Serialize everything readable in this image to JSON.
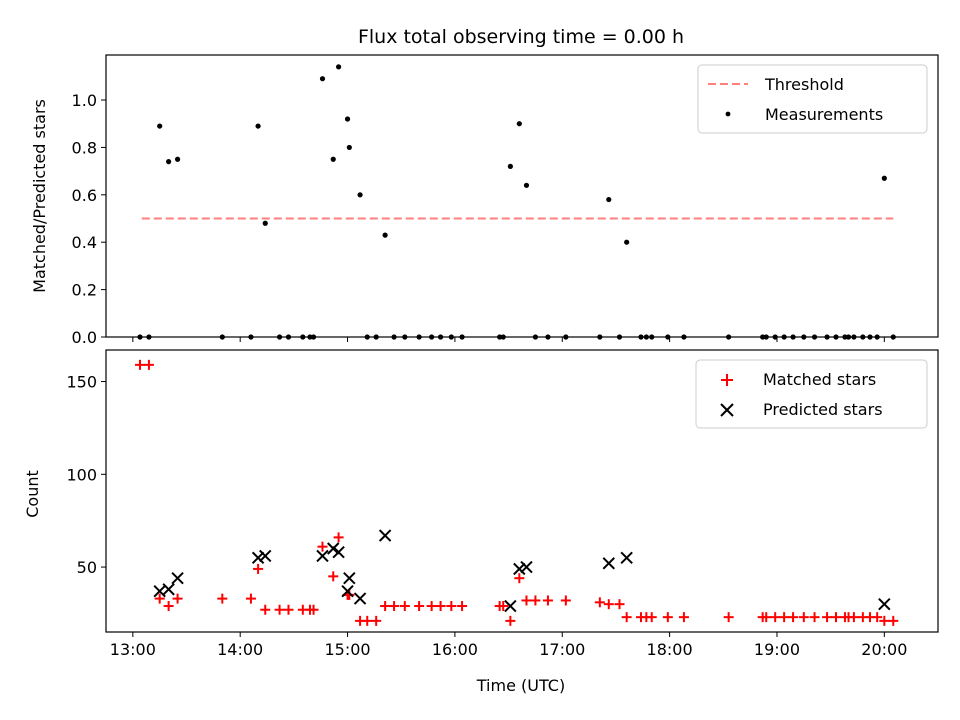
{
  "chart_data": [
    {
      "type": "scatter",
      "title": "Flux total observing time = 0.00 h",
      "xlabel": "",
      "ylabel": "Matched/Predicted stars",
      "xlim": [
        "12:45",
        "20:30"
      ],
      "ylim": [
        0,
        1.19
      ],
      "x_tick_labels": [],
      "x_ticks": [
        "13:00",
        "14:00",
        "15:00",
        "16:00",
        "17:00",
        "18:00",
        "19:00",
        "20:00"
      ],
      "y_ticks": [
        0.0,
        0.2,
        0.4,
        0.6,
        0.8,
        1.0
      ],
      "y_tick_labels": [
        "0.0",
        "0.2",
        "0.4",
        "0.6",
        "0.8",
        "1.0"
      ],
      "grid": false,
      "legend": "top-right",
      "threshold": {
        "name": "Threshold",
        "value": 0.5,
        "x_range": [
          "13:05",
          "20:05"
        ],
        "color": "#ff7f7f"
      },
      "series": [
        {
          "name": "Measurements",
          "color": "#000000",
          "marker": "dot",
          "points": [
            [
              "13:04",
              0.0
            ],
            [
              "13:09",
              0.0
            ],
            [
              "13:15",
              0.89
            ],
            [
              "13:20",
              0.74
            ],
            [
              "13:25",
              0.75
            ],
            [
              "13:50",
              0.0
            ],
            [
              "14:06",
              0.0
            ],
            [
              "14:10",
              0.89
            ],
            [
              "14:14",
              0.48
            ],
            [
              "14:22",
              0.0
            ],
            [
              "14:27",
              0.0
            ],
            [
              "14:35",
              0.0
            ],
            [
              "14:39",
              0.0
            ],
            [
              "14:41",
              0.0
            ],
            [
              "14:46",
              1.09
            ],
            [
              "14:52",
              0.75
            ],
            [
              "14:55",
              1.14
            ],
            [
              "15:00",
              0.92
            ],
            [
              "15:01",
              0.8
            ],
            [
              "15:07",
              0.6
            ],
            [
              "15:11",
              0.0
            ],
            [
              "15:16",
              0.0
            ],
            [
              "15:21",
              0.43
            ],
            [
              "15:26",
              0.0
            ],
            [
              "15:32",
              0.0
            ],
            [
              "15:40",
              0.0
            ],
            [
              "15:47",
              0.0
            ],
            [
              "15:52",
              0.0
            ],
            [
              "15:58",
              0.0
            ],
            [
              "16:04",
              0.0
            ],
            [
              "16:25",
              0.0
            ],
            [
              "16:27",
              0.0
            ],
            [
              "16:31",
              0.72
            ],
            [
              "16:36",
              0.9
            ],
            [
              "16:40",
              0.64
            ],
            [
              "16:45",
              0.0
            ],
            [
              "16:52",
              0.0
            ],
            [
              "17:02",
              0.0
            ],
            [
              "17:21",
              0.0
            ],
            [
              "17:26",
              0.58
            ],
            [
              "17:32",
              0.0
            ],
            [
              "17:36",
              0.4
            ],
            [
              "17:44",
              0.0
            ],
            [
              "17:47",
              0.0
            ],
            [
              "17:50",
              0.0
            ],
            [
              "17:59",
              0.0
            ],
            [
              "18:08",
              0.0
            ],
            [
              "18:33",
              0.0
            ],
            [
              "18:52",
              0.0
            ],
            [
              "18:54",
              0.0
            ],
            [
              "18:59",
              0.0
            ],
            [
              "19:04",
              0.0
            ],
            [
              "19:09",
              0.0
            ],
            [
              "19:15",
              0.0
            ],
            [
              "19:21",
              0.0
            ],
            [
              "19:28",
              0.0
            ],
            [
              "19:33",
              0.0
            ],
            [
              "19:38",
              0.0
            ],
            [
              "19:40",
              0.0
            ],
            [
              "19:43",
              0.0
            ],
            [
              "19:48",
              0.0
            ],
            [
              "19:52",
              0.0
            ],
            [
              "19:56",
              0.0
            ],
            [
              "20:00",
              0.67
            ],
            [
              "20:05",
              0.0
            ]
          ]
        }
      ]
    },
    {
      "type": "scatter",
      "title": "",
      "xlabel": "Time (UTC)",
      "ylabel": "Count",
      "xlim": [
        "12:45",
        "20:30"
      ],
      "ylim": [
        15,
        167
      ],
      "x_ticks": [
        "13:00",
        "14:00",
        "15:00",
        "16:00",
        "17:00",
        "18:00",
        "19:00",
        "20:00"
      ],
      "x_tick_labels": [
        "13:00",
        "14:00",
        "15:00",
        "16:00",
        "17:00",
        "18:00",
        "19:00",
        "20:00"
      ],
      "y_ticks": [
        50,
        100,
        150
      ],
      "y_tick_labels": [
        "50",
        "100",
        "150"
      ],
      "grid": false,
      "legend": "top-right",
      "series": [
        {
          "name": "Matched stars",
          "color": "#ff0000",
          "marker": "plus",
          "points": [
            [
              "13:04",
              159
            ],
            [
              "13:09",
              159
            ],
            [
              "13:15",
              33
            ],
            [
              "13:20",
              29
            ],
            [
              "13:25",
              33
            ],
            [
              "13:50",
              33
            ],
            [
              "14:06",
              33
            ],
            [
              "14:10",
              49
            ],
            [
              "14:14",
              27
            ],
            [
              "14:22",
              27
            ],
            [
              "14:27",
              27
            ],
            [
              "14:35",
              27
            ],
            [
              "14:39",
              27
            ],
            [
              "14:41",
              27
            ],
            [
              "14:46",
              61
            ],
            [
              "14:52",
              45
            ],
            [
              "14:55",
              66
            ],
            [
              "15:00",
              35
            ],
            [
              "15:01",
              35
            ],
            [
              "15:07",
              21
            ],
            [
              "15:11",
              21
            ],
            [
              "15:16",
              21
            ],
            [
              "15:21",
              29
            ],
            [
              "15:26",
              29
            ],
            [
              "15:32",
              29
            ],
            [
              "15:40",
              29
            ],
            [
              "15:47",
              29
            ],
            [
              "15:52",
              29
            ],
            [
              "15:58",
              29
            ],
            [
              "16:04",
              29
            ],
            [
              "16:25",
              29
            ],
            [
              "16:27",
              29
            ],
            [
              "16:31",
              21
            ],
            [
              "16:36",
              44
            ],
            [
              "16:40",
              32
            ],
            [
              "16:45",
              32
            ],
            [
              "16:52",
              32
            ],
            [
              "17:02",
              32
            ],
            [
              "17:21",
              31
            ],
            [
              "17:26",
              30
            ],
            [
              "17:32",
              30
            ],
            [
              "17:36",
              23
            ],
            [
              "17:44",
              23
            ],
            [
              "17:47",
              23
            ],
            [
              "17:50",
              23
            ],
            [
              "17:59",
              23
            ],
            [
              "18:08",
              23
            ],
            [
              "18:33",
              23
            ],
            [
              "18:52",
              23
            ],
            [
              "18:54",
              23
            ],
            [
              "18:59",
              23
            ],
            [
              "19:04",
              23
            ],
            [
              "19:09",
              23
            ],
            [
              "19:15",
              23
            ],
            [
              "19:21",
              23
            ],
            [
              "19:28",
              23
            ],
            [
              "19:33",
              23
            ],
            [
              "19:38",
              23
            ],
            [
              "19:40",
              23
            ],
            [
              "19:43",
              23
            ],
            [
              "19:48",
              23
            ],
            [
              "19:52",
              23
            ],
            [
              "19:56",
              23
            ],
            [
              "20:00",
              21
            ],
            [
              "20:05",
              21
            ]
          ]
        },
        {
          "name": "Predicted stars",
          "color": "#000000",
          "marker": "x",
          "points": [
            [
              "13:15",
              37
            ],
            [
              "13:20",
              38
            ],
            [
              "13:25",
              44
            ],
            [
              "14:10",
              55
            ],
            [
              "14:14",
              56
            ],
            [
              "14:46",
              56
            ],
            [
              "14:52",
              60
            ],
            [
              "14:55",
              58
            ],
            [
              "15:00",
              37
            ],
            [
              "15:01",
              44
            ],
            [
              "15:07",
              33
            ],
            [
              "15:21",
              67
            ],
            [
              "16:31",
              29
            ],
            [
              "16:36",
              49
            ],
            [
              "16:40",
              50
            ],
            [
              "17:26",
              52
            ],
            [
              "17:36",
              55
            ],
            [
              "20:00",
              30
            ]
          ]
        }
      ]
    }
  ]
}
